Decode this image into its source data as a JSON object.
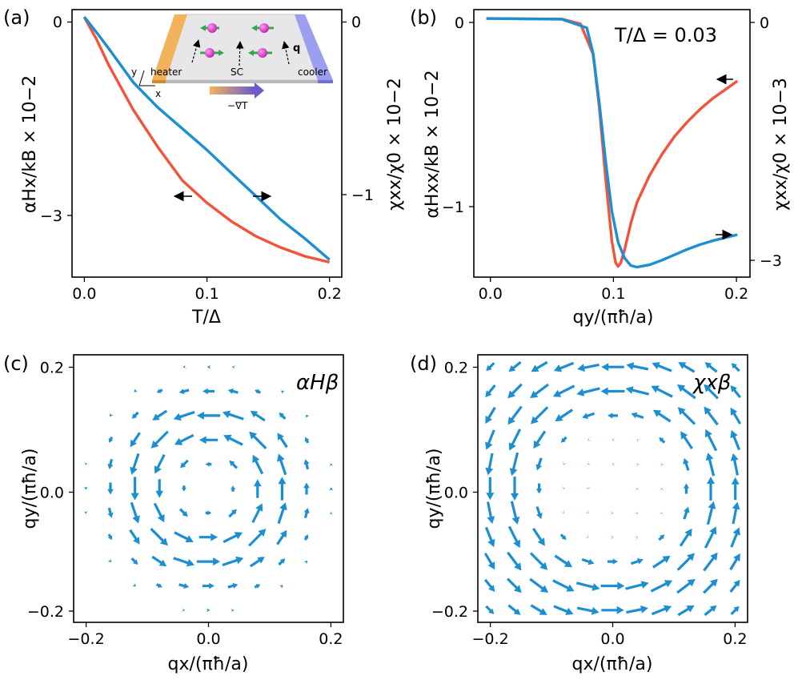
{
  "colors": {
    "red": "#f2533a",
    "blue": "#1b8fd2",
    "heater": "#f5b25c",
    "cooler": "#9c9ef0"
  },
  "panels": {
    "a": {
      "label": "(a)",
      "xlabel": "T/Δ",
      "ylabel_left": "αHx/kB × 10−2",
      "ylabel_right": "χxx/χ0 × 10−2",
      "xticks": [
        "0.0",
        "0.1",
        "0.2"
      ],
      "yticks_left": [
        "0",
        "−3"
      ],
      "yticks_right": [
        "0",
        "−1"
      ]
    },
    "b": {
      "label": "(b)",
      "annotation": "T/Δ = 0.03",
      "xlabel": "qy/(πħ/a)",
      "ylabel_left": "αHxx/kB × 10−2",
      "ylabel_right": "χxx/χ0 × 10−3",
      "xticks": [
        "0.0",
        "0.1",
        "0.2"
      ],
      "yticks_left": [
        "0",
        "−1"
      ],
      "yticks_right": [
        "0",
        "−3"
      ]
    },
    "c": {
      "label": "(c)",
      "annotation": "αHβ",
      "xlabel": "qx/(πħ/a)",
      "ylabel": "qy/(πħ/a)",
      "xticks": [
        "−0.2",
        "0.0",
        "0.2"
      ],
      "yticks": [
        "0.2",
        "0.0",
        "−0.2"
      ]
    },
    "d": {
      "label": "(d)",
      "annotation": "χxβ",
      "xlabel": "qx/(πħ/a)",
      "ylabel": "qy/(πħ/a)",
      "xticks": [
        "−0.2",
        "0.0",
        "0.2"
      ],
      "yticks": [
        "0.2",
        "0.0",
        "−0.2"
      ]
    }
  },
  "inset": {
    "heater": "heater",
    "cooler": "cooler",
    "sc": "SC",
    "q": "q",
    "grad": "−∇T",
    "axis_y": "y",
    "axis_x": "x"
  },
  "chart_data": [
    {
      "type": "line",
      "panel": "a",
      "xlim": [
        -0.01,
        0.21
      ],
      "ylim_left": [
        -3.5,
        0.1
      ],
      "ylim_right": [
        -1.35,
        0.038
      ],
      "series": [
        {
          "axis": "left",
          "color": "red",
          "x": [
            0,
            0.01,
            0.02,
            0.04,
            0.06,
            0.08,
            0.1,
            0.12,
            0.14,
            0.16,
            0.18,
            0.2
          ],
          "y": [
            0,
            -0.3,
            -0.65,
            -1.25,
            -1.75,
            -2.2,
            -2.5,
            -2.75,
            -2.95,
            -3.1,
            -3.22,
            -3.3
          ]
        },
        {
          "axis": "right",
          "color": "blue",
          "x": [
            0,
            0.01,
            0.02,
            0.04,
            0.06,
            0.08,
            0.1,
            0.12,
            0.14,
            0.16,
            0.18,
            0.2
          ],
          "y": [
            0,
            -0.08,
            -0.165,
            -0.34,
            -0.47,
            -0.58,
            -0.69,
            -0.81,
            -0.93,
            -1.05,
            -1.15,
            -1.26
          ]
        }
      ]
    },
    {
      "type": "line",
      "panel": "b",
      "xlim": [
        -0.01,
        0.21
      ],
      "ylim_left": [
        -1.45,
        0.05
      ],
      "ylim_right": [
        -3.35,
        0.115
      ],
      "series": [
        {
          "axis": "left",
          "color": "red",
          "x": [
            0,
            0.06,
            0.075,
            0.085,
            0.09,
            0.095,
            0.1,
            0.103,
            0.105,
            0.107,
            0.11,
            0.115,
            0.12,
            0.13,
            0.14,
            0.15,
            0.16,
            0.17,
            0.18,
            0.19,
            0.2
          ],
          "y": [
            0,
            -0.003,
            -0.03,
            -0.2,
            -0.5,
            -0.9,
            -1.25,
            -1.37,
            -1.39,
            -1.37,
            -1.3,
            -1.15,
            -1.03,
            -0.88,
            -0.76,
            -0.66,
            -0.58,
            -0.51,
            -0.45,
            -0.4,
            -0.35
          ]
        },
        {
          "axis": "right",
          "color": "blue",
          "x": [
            0,
            0.06,
            0.08,
            0.085,
            0.09,
            0.095,
            0.1,
            0.105,
            0.11,
            0.115,
            0.12,
            0.13,
            0.14,
            0.15,
            0.16,
            0.17,
            0.18,
            0.19,
            0.2
          ],
          "y": [
            0,
            -0.01,
            -0.12,
            -0.45,
            -1.1,
            -1.85,
            -2.5,
            -2.9,
            -3.1,
            -3.2,
            -3.22,
            -3.19,
            -3.13,
            -3.06,
            -2.99,
            -2.93,
            -2.88,
            -2.84,
            -2.8
          ]
        }
      ]
    },
    {
      "type": "quiver",
      "panel": "c",
      "field": "alpha_H_beta",
      "xlim": [
        -0.22,
        0.22
      ],
      "ylim": [
        -0.22,
        0.22
      ],
      "grid_x": [
        -0.2,
        -0.16,
        -0.12,
        -0.08,
        -0.04,
        0.0,
        0.04,
        0.08,
        0.12,
        0.16,
        0.2
      ],
      "grid_y": [
        -0.2,
        -0.16,
        -0.12,
        -0.08,
        -0.04,
        0.0,
        0.04,
        0.08,
        0.12,
        0.16,
        0.2
      ],
      "description": "counterclockwise vortex peaked on ring |q|≈0.12"
    },
    {
      "type": "quiver",
      "panel": "d",
      "field": "chi_x_beta",
      "xlim": [
        -0.22,
        0.22
      ],
      "ylim": [
        -0.22,
        0.22
      ],
      "grid_x": [
        -0.2,
        -0.16,
        -0.12,
        -0.08,
        -0.04,
        0.0,
        0.04,
        0.08,
        0.12,
        0.16,
        0.2
      ],
      "grid_y": [
        -0.2,
        -0.16,
        -0.12,
        -0.08,
        -0.04,
        0.0,
        0.04,
        0.08,
        0.12,
        0.16,
        0.2
      ],
      "description": "counterclockwise circulation strong outside |q|≈0.12, weak inside"
    }
  ]
}
